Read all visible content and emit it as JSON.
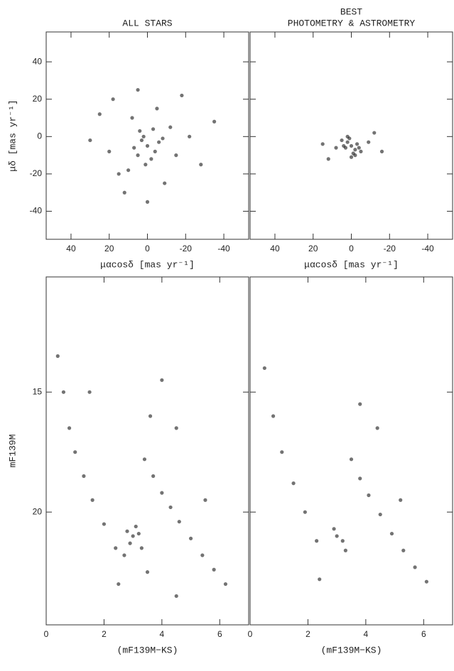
{
  "chart_data": [
    {
      "type": "scatter",
      "title_lines": [
        "ALL STARS"
      ],
      "xlabel": "μαcosδ [mas yr⁻¹]",
      "ylabel": "μδ [mas yr⁻¹]",
      "color": "#000000",
      "xlim": [
        53,
        -53
      ],
      "ylim": [
        -55,
        56
      ],
      "xticks": [
        40,
        20,
        0,
        -20,
        -40
      ],
      "yticks": [
        -40,
        -20,
        0,
        20,
        40
      ],
      "x": [
        0,
        3,
        -4,
        5,
        -6,
        2,
        -2,
        7,
        -8,
        1,
        4,
        -3,
        10,
        -12,
        15,
        -15,
        8,
        -9,
        20,
        -22,
        25,
        -28,
        12,
        -5,
        30,
        -35,
        0,
        18,
        -18,
        5
      ],
      "y": [
        -5,
        -2,
        -8,
        -10,
        -3,
        0,
        -12,
        -6,
        -1,
        -15,
        3,
        4,
        -18,
        5,
        -20,
        -10,
        10,
        -25,
        -8,
        0,
        12,
        -15,
        -30,
        15,
        -2,
        8,
        -35,
        20,
        22,
        25
      ]
    },
    {
      "type": "scatter",
      "title_lines": [
        "BEST",
        "PHOTOMETRY & ASTROMETRY"
      ],
      "xlabel": "μαcosδ [mas yr⁻¹]",
      "color": "#000000",
      "xlim": [
        53,
        -53
      ],
      "ylim": [
        -55,
        56
      ],
      "xticks": [
        40,
        20,
        0,
        -20,
        -40
      ],
      "x": [
        0,
        2,
        -2,
        3,
        -3,
        1,
        -1,
        4,
        -4,
        0,
        5,
        -5,
        2,
        -2,
        8,
        -9,
        12,
        -12,
        15,
        -16
      ],
      "y": [
        -5,
        -3,
        -7,
        -6,
        -4,
        -1,
        -9,
        -5,
        -6,
        -11,
        -2,
        -8,
        0,
        -10,
        -6,
        -3,
        -12,
        2,
        -4,
        -8
      ]
    },
    {
      "type": "scatter",
      "xlabel": "(mF139M−KS)",
      "ylabel": "mF139M",
      "color": "#000000",
      "xlim": [
        0,
        7
      ],
      "ylim": [
        24.7,
        10.2
      ],
      "xticks": [
        0,
        2,
        4,
        6
      ],
      "yticks": [
        15,
        20
      ],
      "x": [
        0.4,
        0.6,
        0.8,
        1.0,
        1.3,
        1.6,
        2.0,
        2.4,
        2.8,
        3.0,
        3.2,
        2.9,
        3.3,
        3.1,
        2.7,
        3.4,
        3.7,
        4.0,
        4.3,
        4.6,
        5.0,
        5.4,
        5.8,
        6.2,
        4.0,
        3.6,
        4.5,
        2.5,
        4.5,
        3.5,
        1.5,
        5.5
      ],
      "y": [
        13.5,
        15,
        16.5,
        17.5,
        18.5,
        19.5,
        20.5,
        21.5,
        20.8,
        21,
        20.9,
        21.3,
        21.5,
        20.6,
        21.8,
        17.8,
        18.5,
        19.2,
        19.8,
        20.4,
        21.1,
        21.8,
        22.4,
        23.0,
        14.5,
        16,
        16.5,
        23,
        23.5,
        22.5,
        15,
        19.5
      ]
    },
    {
      "type": "scatter",
      "xlabel": "(mF139M−KS)",
      "color": "#000000",
      "xlim": [
        0,
        7
      ],
      "ylim": [
        24.7,
        10.2
      ],
      "xticks": [
        0,
        2,
        4,
        6
      ],
      "x": [
        0.5,
        0.8,
        1.1,
        1.5,
        1.9,
        2.3,
        3.0,
        3.2,
        2.9,
        3.3,
        3.5,
        3.8,
        4.1,
        4.5,
        4.9,
        5.3,
        5.7,
        6.1,
        3.8,
        4.4,
        2.4,
        5.2
      ],
      "y": [
        14,
        16,
        17.5,
        18.8,
        20,
        21.2,
        21,
        21.2,
        20.7,
        21.6,
        17.8,
        18.6,
        19.3,
        20.1,
        20.9,
        21.6,
        22.3,
        22.9,
        15.5,
        16.5,
        22.8,
        19.5
      ]
    }
  ]
}
